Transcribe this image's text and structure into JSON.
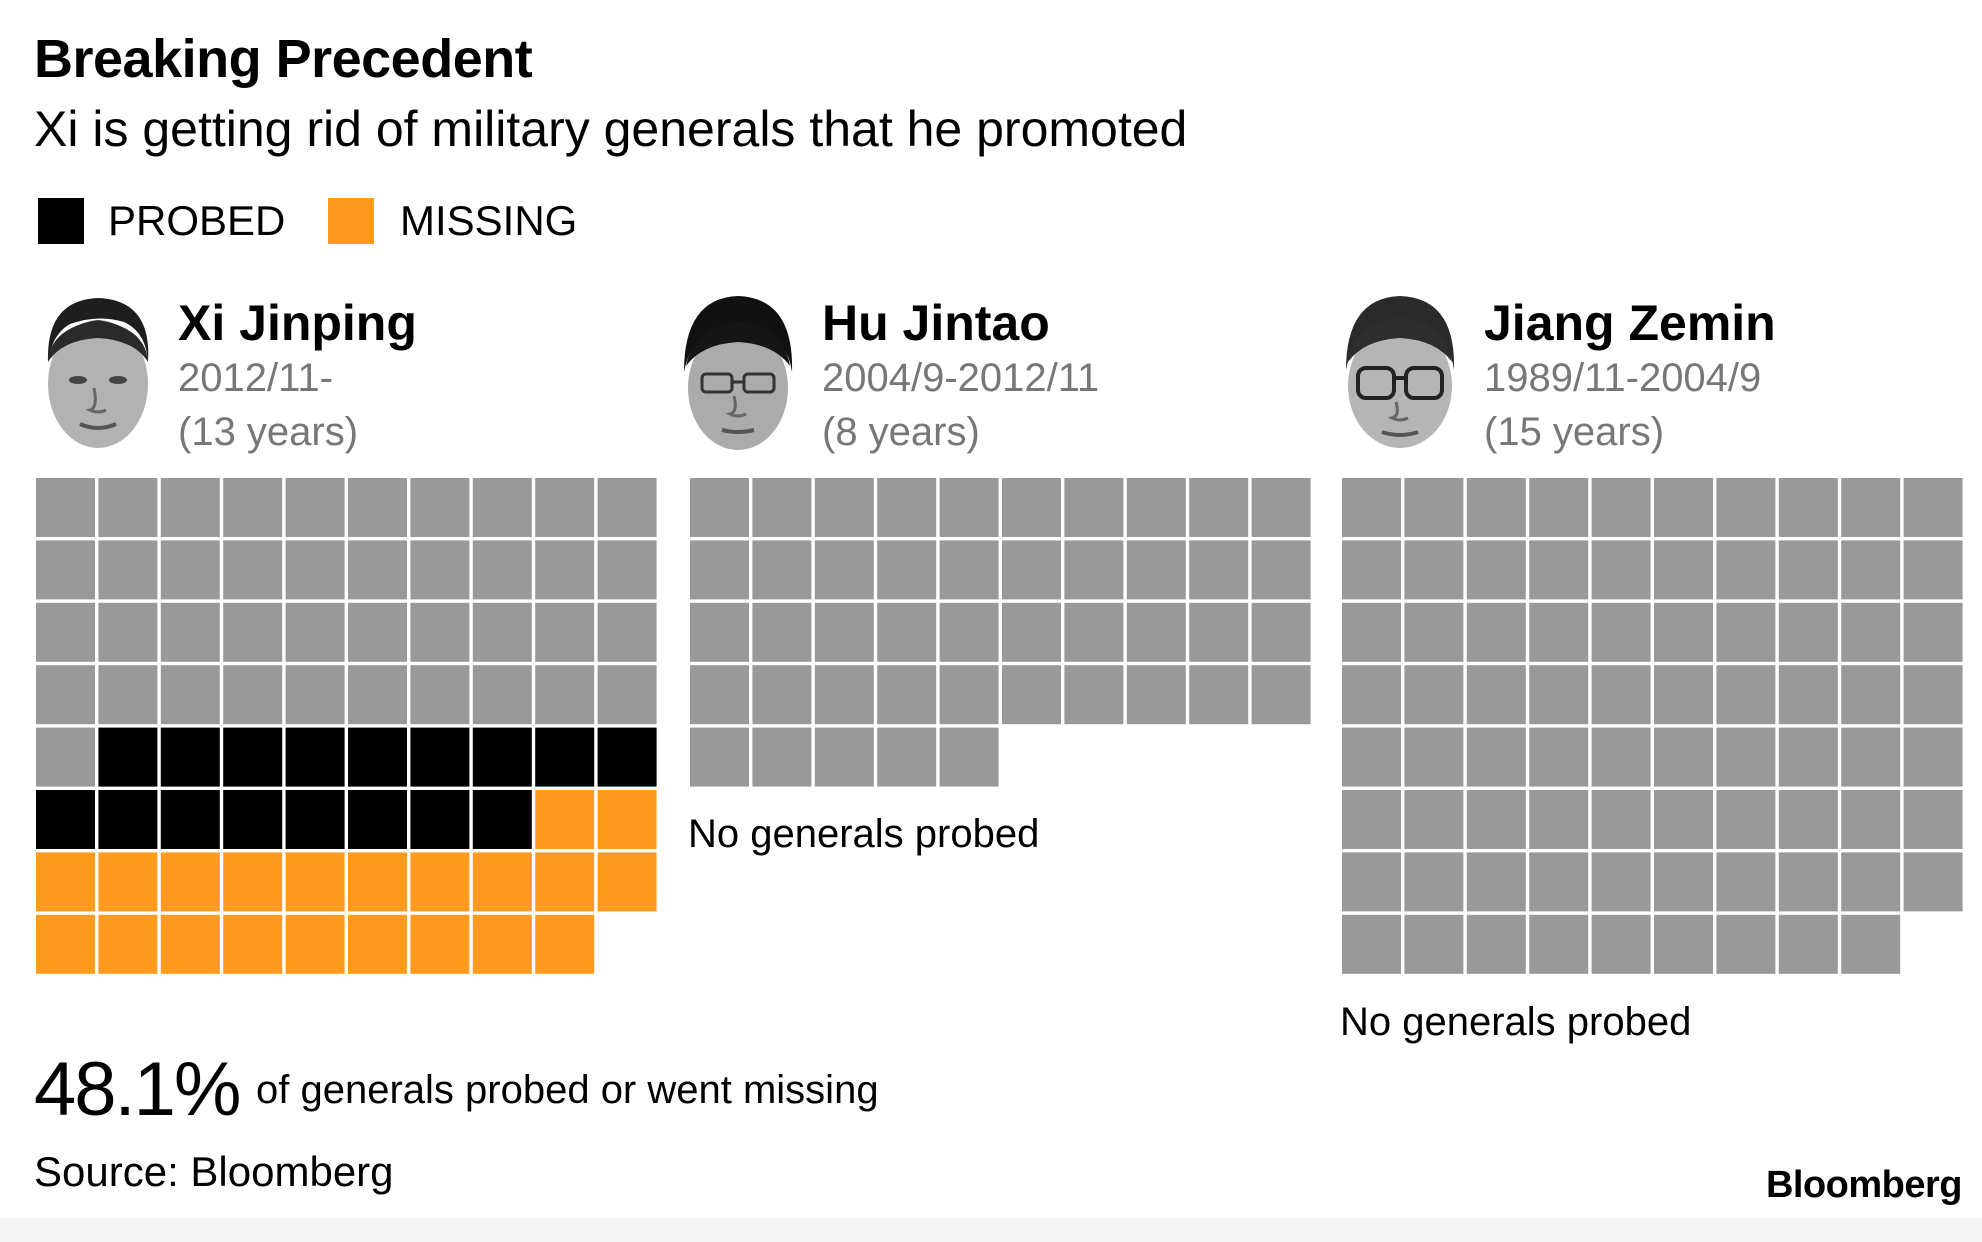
{
  "title": "Breaking Precedent",
  "subtitle": "Xi is getting rid of military generals that he promoted",
  "legend": [
    {
      "label": "PROBED",
      "color": "#000000"
    },
    {
      "label": "MISSING",
      "color": "#ff9a1f"
    }
  ],
  "colors": {
    "other": "#999999",
    "probed": "#000000",
    "missing": "#ff9a1f"
  },
  "leaders": [
    {
      "name": "Xi Jinping",
      "term": "2012/11-",
      "years": "(13 years)"
    },
    {
      "name": "Hu Jintao",
      "term": "2004/9-2012/11",
      "years": "(8 years)"
    },
    {
      "name": "Jiang Zemin",
      "term": "1989/11-2004/9",
      "years": "(15 years)"
    }
  ],
  "notes": {
    "hu": "No generals probed",
    "jiang": "No generals probed"
  },
  "highlight": {
    "value": "48.1%",
    "text": "of generals probed or went missing"
  },
  "source": "Source: Bloomberg",
  "brand": "Bloomberg",
  "chart_data": {
    "type": "waffle",
    "units": "generals promoted (one square each)",
    "columns": 10,
    "panels": [
      {
        "leader": "Xi Jinping",
        "total": 79,
        "probed": 17,
        "missing": 21,
        "other": 41
      },
      {
        "leader": "Hu Jintao",
        "total": 45,
        "probed": 0,
        "missing": 0,
        "other": 45
      },
      {
        "leader": "Jiang Zemin",
        "total": 79,
        "probed": 0,
        "missing": 0,
        "other": 79
      }
    ]
  }
}
